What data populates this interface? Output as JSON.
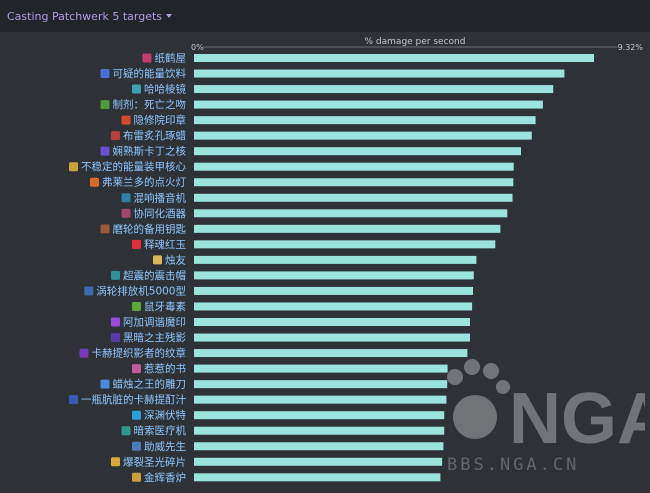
{
  "header": {
    "dropdown_label": "Casting Patchwerk 5 targets"
  },
  "colors": {
    "bar": "#9be3dd",
    "label": "#8fc6ff",
    "background": "#2e3237",
    "header_bg": "#212428",
    "accent": "#b49ae8"
  },
  "watermark": {
    "text": "BBS.NGA.CN",
    "logo_text": "NGA"
  },
  "chart_data": {
    "type": "bar",
    "orientation": "horizontal",
    "x_axis_title": "% damage per second",
    "x_min_label": "0%",
    "x_max_label": "9.32%",
    "xlim": [
      0,
      9.32
    ],
    "categories": [
      "纸鹤屋",
      "可疑的能量饮料",
      "哈哈棱镜",
      "制剂：死亡之吻",
      "隐修院印章",
      "布雷炙孔琢蜡",
      "娴熟斯卡丁之核",
      "不稳定的能量装甲核心",
      "弗莱兰多的点火灯",
      "混响播音机",
      "协同化酒器",
      "磨轮的备用钥匙",
      "释魂红玉",
      "烛友",
      "超震的震击帽",
      "涡轮排放机5000型",
      "鼠牙毒素",
      "阿加调谐魔印",
      "黑暗之主残影",
      "卡赫提织影者的纹章",
      "惹惹的书",
      "蜡烛之王的雕刀",
      "一瓶肮脏的卡赫提酊汁",
      "深渊伏特",
      "暗索医疗机",
      "助威先生",
      "爆裂圣光碎片",
      "金辉香炉"
    ],
    "icons": [
      "paper-crane-icon",
      "energy-drink-icon",
      "prism-icon",
      "poison-vial-icon",
      "priory-seal-icon",
      "wax-icon",
      "crystal-core-icon",
      "armor-core-icon",
      "lamp-icon",
      "speaker-icon",
      "decanter-icon",
      "key-icon",
      "ruby-icon",
      "candle-icon",
      "helmet-icon",
      "turbo-icon",
      "fang-icon",
      "sigil-icon",
      "shadow-icon",
      "crest-icon",
      "book-icon",
      "knife-icon",
      "bottle-icon",
      "volt-icon",
      "medical-device-icon",
      "cheer-icon",
      "shard-icon",
      "censer-icon"
    ],
    "icon_colors": [
      "#c23d6b",
      "#4a6fd8",
      "#3da0b5",
      "#4f9a3c",
      "#d24a2a",
      "#b3403a",
      "#6a4fd1",
      "#c9a43a",
      "#d86a2a",
      "#2f7fa8",
      "#a3486a",
      "#9a5a3a",
      "#e0303a",
      "#d8b85a",
      "#2f8f9a",
      "#3a6ab0",
      "#5aa83a",
      "#9a4ad8",
      "#5a3aa8",
      "#7a3ab8",
      "#c05a9a",
      "#4a8ad8",
      "#3a5ab8",
      "#2aa0d8",
      "#2f9a8a",
      "#4a7ab8",
      "#d8a83a",
      "#c9a03a"
    ],
    "values": [
      9.32,
      8.63,
      8.37,
      8.13,
      7.96,
      7.87,
      7.62,
      7.45,
      7.44,
      7.42,
      7.3,
      7.14,
      7.02,
      6.58,
      6.52,
      6.5,
      6.48,
      6.43,
      6.43,
      6.37,
      5.91,
      5.9,
      5.88,
      5.83,
      5.83,
      5.81,
      5.78,
      5.74
    ],
    "grid": false
  }
}
